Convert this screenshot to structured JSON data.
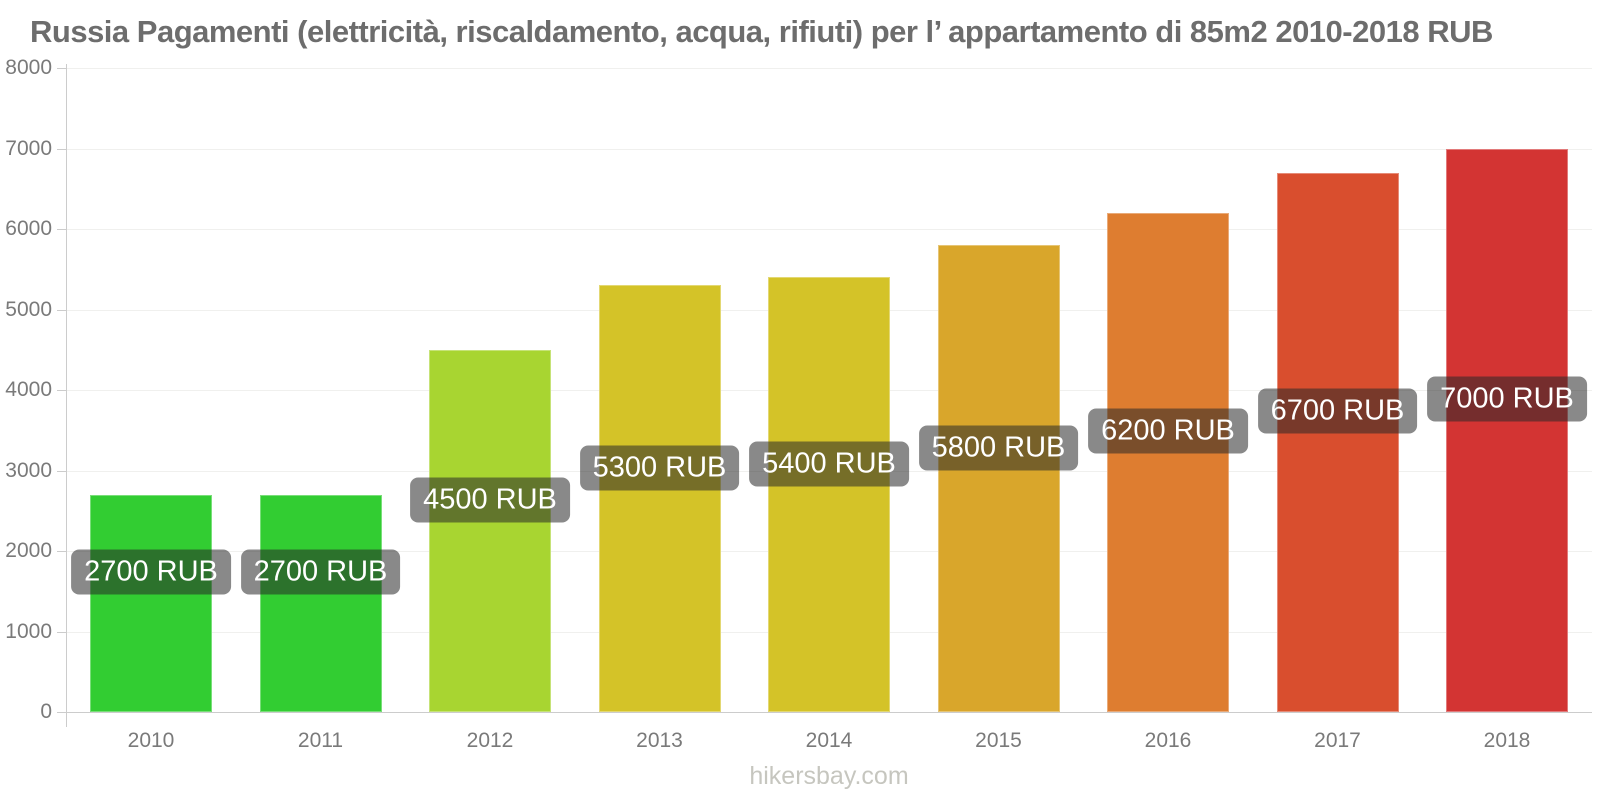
{
  "chart_data": {
    "type": "bar",
    "title": "Russia Pagamenti (elettricità, riscaldamento, acqua, rifiuti) per l’ appartamento di 85m2 2010-2018 RUB",
    "categories": [
      "2010",
      "2011",
      "2012",
      "2013",
      "2014",
      "2015",
      "2016",
      "2017",
      "2018"
    ],
    "values": [
      2700,
      2700,
      4500,
      5300,
      5400,
      5800,
      6200,
      6700,
      7000
    ],
    "value_labels": [
      "2700 RUB",
      "2700 RUB",
      "4500 RUB",
      "5300 RUB",
      "5400 RUB",
      "5800 RUB",
      "6200 RUB",
      "6700 RUB",
      "7000 RUB"
    ],
    "bar_colors": [
      "#32cd32",
      "#32cd32",
      "#a8d531",
      "#d4c328",
      "#d4c328",
      "#d9a62b",
      "#de7d30",
      "#d94e2e",
      "#d33433"
    ],
    "unit": "RUB",
    "ylim": [
      0,
      8000
    ],
    "ytick_step": 1000,
    "yticks": [
      8000,
      7000,
      6000,
      5000,
      4000,
      3000,
      2000,
      1000,
      0
    ],
    "grid": "horizontal",
    "legend": "none",
    "watermark": "hikersbay.com"
  },
  "colors": {
    "title_text": "#6d6d6d",
    "axis_line": "#cccccc",
    "gridline": "#f0f0ee",
    "tick_label_text": "#7a7a7a",
    "value_label_bg": "rgba(40,40,40,0.55)",
    "value_label_text": "#ffffff",
    "watermark_text": "#c6c6bf"
  }
}
